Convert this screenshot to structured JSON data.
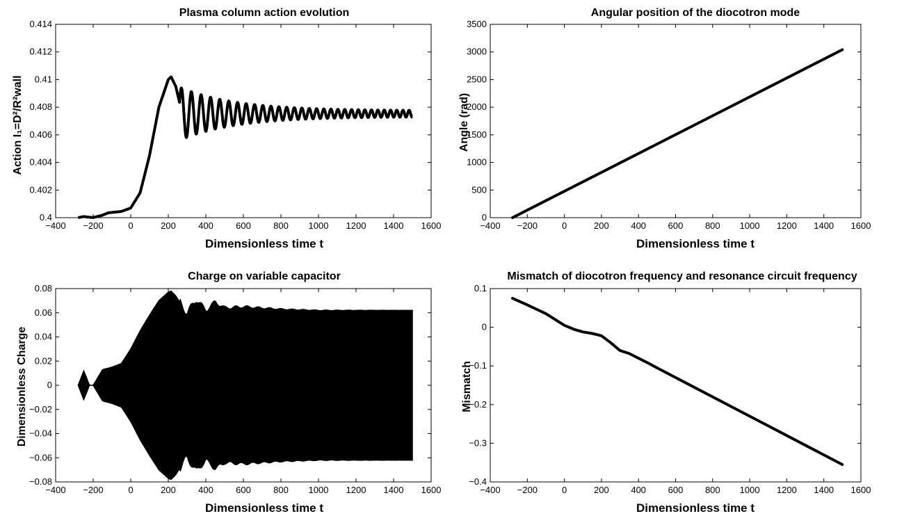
{
  "chart_data": [
    {
      "type": "line",
      "title": "Plasma column action evolution",
      "xlabel": "Dimensionless time t",
      "ylabel": "Action I₁=D²/R²wall",
      "xlim": [
        -400,
        1600
      ],
      "ylim": [
        0.4,
        0.414
      ],
      "xticks": [
        "-400",
        "-200",
        "0",
        "200",
        "400",
        "600",
        "800",
        "1000",
        "1200",
        "1400",
        "1600"
      ],
      "yticks": [
        "0.4",
        "0.402",
        "0.404",
        "0.406",
        "0.408",
        "0.41",
        "0.412",
        "0.414"
      ],
      "series": [
        {
          "color": "#000000",
          "x": [
            -280,
            -250,
            -220,
            -200,
            -150,
            -120,
            -100,
            -50,
            0,
            50,
            100,
            150,
            200,
            215,
            240,
            280,
            300,
            350,
            400,
            450,
            500,
            600,
            800,
            1000,
            1200,
            1400,
            1500
          ],
          "y": [
            0.4,
            0.40008,
            0.40003,
            0.40001,
            0.40018,
            0.40035,
            0.40038,
            0.40045,
            0.4007,
            0.4018,
            0.4045,
            0.408,
            0.41,
            0.4102,
            0.4095,
            0.4072,
            0.4065,
            0.4088,
            0.4072,
            0.4083,
            0.4075,
            0.4077,
            0.4075,
            0.4075,
            0.4075,
            0.4075,
            0.4075
          ],
          "oscillation_band": {
            "period": 55,
            "amplitude_start": 0.0017,
            "amplitude_end": 0.00022,
            "center": 0.40753,
            "from": 260
          }
        }
      ]
    },
    {
      "type": "line",
      "title": "Angular position of the diocotron mode",
      "xlabel": "Dimensionless time t",
      "ylabel": "Angle (rad)",
      "xlim": [
        -400,
        1600
      ],
      "ylim": [
        0,
        3500
      ],
      "xticks": [
        "-400",
        "-200",
        "0",
        "200",
        "400",
        "600",
        "800",
        "1000",
        "1200",
        "1400",
        "1600"
      ],
      "yticks": [
        "0",
        "500",
        "1000",
        "1500",
        "2000",
        "2500",
        "3000",
        "3500"
      ],
      "series": [
        {
          "color": "#000000",
          "x": [
            -280,
            1500
          ],
          "y": [
            0,
            3040
          ]
        }
      ]
    },
    {
      "type": "area",
      "title": "Charge on variable capacitor",
      "xlabel": "Dimensionless time t",
      "ylabel": "Dimensionless Charge",
      "xlim": [
        -400,
        1600
      ],
      "ylim": [
        -0.08,
        0.08
      ],
      "xticks": [
        "-400",
        "-200",
        "0",
        "200",
        "400",
        "600",
        "800",
        "1000",
        "1200",
        "1400",
        "1600"
      ],
      "yticks": [
        "-0.08",
        "-0.06",
        "-0.04",
        "-0.02",
        "0",
        "0.02",
        "0.04",
        "0.06",
        "0.08"
      ],
      "series": [
        {
          "color": "#000000",
          "x": [
            -280,
            -250,
            -220,
            -200,
            -150,
            -100,
            -50,
            0,
            50,
            100,
            150,
            200,
            215,
            240,
            280,
            300,
            350,
            400,
            450,
            500,
            600,
            800,
            1000,
            1200,
            1400,
            1500
          ],
          "envelope": [
            0.0,
            0.012,
            0.0,
            0.0,
            0.013,
            0.015,
            0.018,
            0.03,
            0.045,
            0.058,
            0.07,
            0.077,
            0.078,
            0.074,
            0.064,
            0.06,
            0.071,
            0.062,
            0.069,
            0.064,
            0.065,
            0.063,
            0.062,
            0.062,
            0.062,
            0.062
          ]
        }
      ]
    },
    {
      "type": "line",
      "title": "Mismatch of diocotron frequency and resonance circuit frequency",
      "xlabel": "Dimensionless time t",
      "ylabel": "Mismatch",
      "xlim": [
        -400,
        1600
      ],
      "ylim": [
        -0.4,
        0.1
      ],
      "xticks": [
        "-400",
        "-200",
        "0",
        "200",
        "400",
        "600",
        "800",
        "1000",
        "1200",
        "1400",
        "1600"
      ],
      "yticks": [
        "-0.4",
        "-0.3",
        "-0.2",
        "-0.1",
        "0",
        "0.1"
      ],
      "series": [
        {
          "color": "#000000",
          "x": [
            -280,
            -200,
            -100,
            0,
            50,
            100,
            150,
            200,
            250,
            300,
            350,
            400,
            450,
            500,
            600,
            700,
            800,
            900,
            1000,
            1100,
            1200,
            1300,
            1400,
            1500
          ],
          "y": [
            0.075,
            0.058,
            0.035,
            0.005,
            -0.005,
            -0.012,
            -0.016,
            -0.022,
            -0.04,
            -0.06,
            -0.068,
            -0.08,
            -0.092,
            -0.105,
            -0.13,
            -0.155,
            -0.18,
            -0.205,
            -0.23,
            -0.255,
            -0.28,
            -0.305,
            -0.33,
            -0.355
          ]
        }
      ]
    }
  ]
}
